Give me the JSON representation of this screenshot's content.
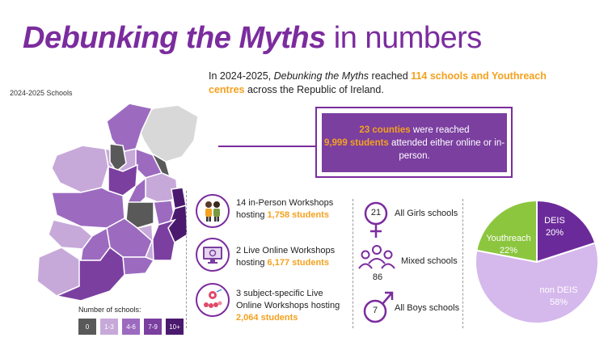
{
  "title": {
    "part1": "Debunking the Myths",
    "part2": "in numbers"
  },
  "intro": {
    "prefix": "In 2024-2025, ",
    "program": "Debunking the Myths",
    "reached": " reached ",
    "highlight": "114 schools and Youthreach centres",
    "suffix": " across the Republic of Ireland."
  },
  "map": {
    "title": "2024-2025 Schools"
  },
  "reach": {
    "counties": "23 counties",
    "counties_suffix": " were reached",
    "students": "9,999 students",
    "students_suffix": " attended either online or in-person."
  },
  "workshops": [
    {
      "text": "14 in-Person Workshops hosting ",
      "highlight": "1,758 students",
      "icon": "people-icon"
    },
    {
      "text": "2 Live Online Workshops hosting ",
      "highlight": "6,177 students",
      "icon": "monitor-icon"
    },
    {
      "text": "3 subject-specific Live Online Workshops hosting ",
      "highlight": "2,064 students",
      "icon": "lab-icon"
    }
  ],
  "school_types": [
    {
      "count": "21",
      "label": "All Girls schools",
      "icon": "female-icon"
    },
    {
      "count": "86",
      "label": "Mixed schools",
      "icon": "group-icon"
    },
    {
      "count": "7",
      "label": "All Boys schools",
      "icon": "male-icon"
    }
  ],
  "legend": {
    "title": "Number of schools:",
    "items": [
      {
        "label": "0",
        "color": "#595959"
      },
      {
        "label": "1-3",
        "color": "#c7a9d9"
      },
      {
        "label": "4-6",
        "color": "#9c6bc0"
      },
      {
        "label": "7-9",
        "color": "#7b3fa0"
      },
      {
        "label": "10+",
        "color": "#4b1a6e"
      }
    ]
  },
  "chart_data": {
    "type": "pie",
    "labels": [
      "DEIS",
      "non DEIS",
      "Youthreach"
    ],
    "values": [
      20,
      58,
      22
    ],
    "value_labels": [
      "20%",
      "58%",
      "22%"
    ],
    "colors": [
      "#6b2a9a",
      "#d5b8ec",
      "#8cc63f"
    ]
  }
}
